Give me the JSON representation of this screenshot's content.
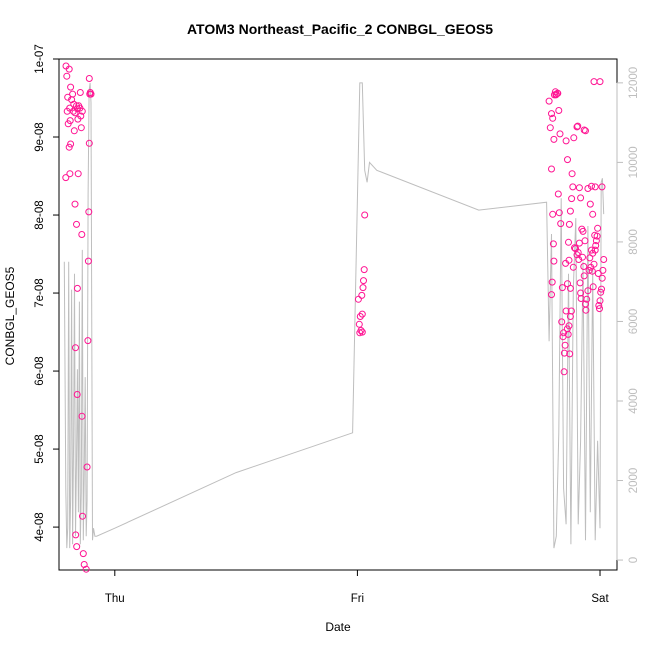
{
  "chart_data": {
    "type": "scatter",
    "title": "ATOM3 Northeast_Pacific_2 CONBGL_GEOS5",
    "xlabel": "Date",
    "ylabel": "CONBGL_GEOS5",
    "x_ticks": [
      {
        "value": 1.0,
        "label": "Thu"
      },
      {
        "value": 2.0,
        "label": "Fri"
      },
      {
        "value": 3.0,
        "label": "Sat"
      }
    ],
    "xlim": [
      0.77,
      3.07
    ],
    "ylim": [
      3.45e-08,
      1e-07
    ],
    "y_ticks": [
      {
        "value": 4e-08,
        "label": "4e-08"
      },
      {
        "value": 5e-08,
        "label": "5e-08"
      },
      {
        "value": 6e-08,
        "label": "6e-08"
      },
      {
        "value": 7e-08,
        "label": "7e-08"
      },
      {
        "value": 8e-08,
        "label": "8e-08"
      },
      {
        "value": 9e-08,
        "label": "9e-08"
      },
      {
        "value": 1e-07,
        "label": "1e-07"
      }
    ],
    "y2lim": [
      -250,
      12600
    ],
    "y2_ticks": [
      {
        "value": 0,
        "label": "0"
      },
      {
        "value": 2000,
        "label": "2000"
      },
      {
        "value": 4000,
        "label": "4000"
      },
      {
        "value": 6000,
        "label": "6000"
      },
      {
        "value": 8000,
        "label": "8000"
      },
      {
        "value": 10000,
        "label": "10000"
      },
      {
        "value": 12000,
        "label": "12000"
      }
    ],
    "grid": false,
    "colors": {
      "points": "#ff1493",
      "altitude_line": "#bebebe",
      "axis": "#000000",
      "right_axis": "#bebebe"
    },
    "points": [
      [
        0.799,
        9.91e-08
      ],
      [
        0.812,
        9.87e-08
      ],
      [
        0.802,
        9.78e-08
      ],
      [
        0.818,
        9.64e-08
      ],
      [
        0.826,
        9.55e-08
      ],
      [
        0.806,
        9.51e-08
      ],
      [
        0.822,
        9.48e-08
      ],
      [
        0.831,
        9.42e-08
      ],
      [
        0.814,
        9.37e-08
      ],
      [
        0.829,
        9.33e-08
      ],
      [
        0.804,
        9.33e-08
      ],
      [
        0.836,
        9.31e-08
      ],
      [
        0.816,
        9.21e-08
      ],
      [
        0.808,
        9.17e-08
      ],
      [
        0.833,
        9.08e-08
      ],
      [
        0.818,
        8.91e-08
      ],
      [
        0.812,
        8.87e-08
      ],
      [
        0.798,
        8.48e-08
      ],
      [
        0.815,
        8.53e-08
      ],
      [
        0.842,
        9.4e-08
      ],
      [
        0.846,
        9.36e-08
      ],
      [
        0.851,
        9.4e-08
      ],
      [
        0.848,
        9.23e-08
      ],
      [
        0.856,
        9.37e-08
      ],
      [
        0.86,
        9.27e-08
      ],
      [
        0.858,
        9.57e-08
      ],
      [
        0.862,
        9.12e-08
      ],
      [
        0.866,
        9.33e-08
      ],
      [
        0.836,
        8.14e-08
      ],
      [
        0.849,
        8.53e-08
      ],
      [
        0.842,
        7.88e-08
      ],
      [
        0.864,
        7.75e-08
      ],
      [
        0.846,
        7.06e-08
      ],
      [
        0.838,
        6.3e-08
      ],
      [
        0.845,
        5.7e-08
      ],
      [
        0.865,
        5.42e-08
      ],
      [
        0.839,
        3.9e-08
      ],
      [
        0.843,
        3.75e-08
      ],
      [
        0.867,
        4.14e-08
      ],
      [
        0.87,
        3.66e-08
      ],
      [
        0.874,
        3.52e-08
      ],
      [
        0.882,
        3.46e-08
      ],
      [
        0.895,
        9.75e-08
      ],
      [
        0.897,
        9.55e-08
      ],
      [
        0.899,
        9.57e-08
      ],
      [
        0.902,
        9.55e-08
      ],
      [
        0.895,
        8.92e-08
      ],
      [
        0.893,
        8.04e-08
      ],
      [
        0.891,
        7.41e-08
      ],
      [
        0.889,
        6.39e-08
      ],
      [
        0.886,
        4.77e-08
      ],
      [
        2.01,
        6.49e-08
      ],
      [
        2.02,
        6.5e-08
      ],
      [
        2.015,
        6.52e-08
      ],
      [
        2.008,
        6.6e-08
      ],
      [
        2.012,
        6.7e-08
      ],
      [
        2.02,
        6.73e-08
      ],
      [
        2.004,
        6.92e-08
      ],
      [
        2.018,
        6.97e-08
      ],
      [
        2.023,
        7.07e-08
      ],
      [
        2.025,
        7.16e-08
      ],
      [
        2.028,
        7.3e-08
      ],
      [
        2.03,
        8e-08
      ],
      [
        2.79,
        9.46e-08
      ],
      [
        2.8,
        9.3e-08
      ],
      [
        2.795,
        9.12e-08
      ],
      [
        2.805,
        9.24e-08
      ],
      [
        2.81,
        8.97e-08
      ],
      [
        2.8,
        8.59e-08
      ],
      [
        2.812,
        9.54e-08
      ],
      [
        2.816,
        9.58e-08
      ],
      [
        2.82,
        9.55e-08
      ],
      [
        2.825,
        9.56e-08
      ],
      [
        2.818,
        9.54e-08
      ],
      [
        2.826,
        9.56e-08
      ],
      [
        2.83,
        9.34e-08
      ],
      [
        2.835,
        9.04e-08
      ],
      [
        2.828,
        8.27e-08
      ],
      [
        2.832,
        8.03e-08
      ],
      [
        2.805,
        8.01e-08
      ],
      [
        2.808,
        7.63e-08
      ],
      [
        2.81,
        7.41e-08
      ],
      [
        2.803,
        7.14e-08
      ],
      [
        2.8,
        6.98e-08
      ],
      [
        2.838,
        7.89e-08
      ],
      [
        2.845,
        7.07e-08
      ],
      [
        2.842,
        6.63e-08
      ],
      [
        2.848,
        6.44e-08
      ],
      [
        2.85,
        6.49e-08
      ],
      [
        2.853,
        6.23e-08
      ],
      [
        2.856,
        6.33e-08
      ],
      [
        2.86,
        6.77e-08
      ],
      [
        2.852,
        5.99e-08
      ],
      [
        2.865,
        6.54e-08
      ],
      [
        2.869,
        6.47e-08
      ],
      [
        2.872,
        6.58e-08
      ],
      [
        2.875,
        6.22e-08
      ],
      [
        2.878,
        6.7e-08
      ],
      [
        2.882,
        6.77e-08
      ],
      [
        2.858,
        7.38e-08
      ],
      [
        2.866,
        7.12e-08
      ],
      [
        2.87,
        7.65e-08
      ],
      [
        2.874,
        7.88e-08
      ],
      [
        2.878,
        8.05e-08
      ],
      [
        2.883,
        8.21e-08
      ],
      [
        2.885,
        8.53e-08
      ],
      [
        2.888,
        8.36e-08
      ],
      [
        2.892,
        8.99e-08
      ],
      [
        2.86,
        8.95e-08
      ],
      [
        2.866,
        8.71e-08
      ],
      [
        2.872,
        7.42e-08
      ],
      [
        2.878,
        7.06e-08
      ],
      [
        2.89,
        7.33e-08
      ],
      [
        2.895,
        7.58e-08
      ],
      [
        2.899,
        7.57e-08
      ],
      [
        2.905,
        7.49e-08
      ],
      [
        2.91,
        7.52e-08
      ],
      [
        2.912,
        7.43e-08
      ],
      [
        2.915,
        7.64e-08
      ],
      [
        2.918,
        7.13e-08
      ],
      [
        2.92,
        7e-08
      ],
      [
        2.922,
        6.93e-08
      ],
      [
        2.925,
        7.82e-08
      ],
      [
        2.928,
        7.46e-08
      ],
      [
        2.93,
        7.79e-08
      ],
      [
        2.933,
        7.34e-08
      ],
      [
        2.935,
        7.22e-08
      ],
      [
        2.938,
        7.67e-08
      ],
      [
        2.94,
        6.86e-08
      ],
      [
        2.942,
        6.78e-08
      ],
      [
        2.945,
        6.92e-08
      ],
      [
        2.95,
        7.03e-08
      ],
      [
        2.955,
        7.29e-08
      ],
      [
        2.958,
        7.45e-08
      ],
      [
        2.962,
        7.33e-08
      ],
      [
        2.965,
        7.55e-08
      ],
      [
        2.968,
        7.28e-08
      ],
      [
        2.97,
        7.51e-08
      ],
      [
        2.972,
        7.08e-08
      ],
      [
        2.975,
        7.37e-08
      ],
      [
        2.978,
        7.74e-08
      ],
      [
        2.98,
        7.55e-08
      ],
      [
        2.982,
        7.61e-08
      ],
      [
        2.985,
        7.67e-08
      ],
      [
        2.988,
        7.73e-08
      ],
      [
        2.99,
        7.83e-08
      ],
      [
        2.993,
        7.25e-08
      ],
      [
        2.995,
        6.84e-08
      ],
      [
        2.998,
        6.8e-08
      ],
      [
        3.0,
        6.9e-08
      ],
      [
        3.003,
        7.01e-08
      ],
      [
        3.006,
        7.05e-08
      ],
      [
        3.009,
        7.19e-08
      ],
      [
        3.012,
        7.29e-08
      ],
      [
        3.015,
        7.43e-08
      ],
      [
        2.905,
        9.13e-08
      ],
      [
        2.908,
        9.14e-08
      ],
      [
        2.915,
        8.35e-08
      ],
      [
        2.92,
        8.22e-08
      ],
      [
        2.935,
        9.09e-08
      ],
      [
        2.94,
        9.08e-08
      ],
      [
        2.95,
        8.34e-08
      ],
      [
        2.96,
        8.14e-08
      ],
      [
        2.965,
        8.37e-08
      ],
      [
        2.97,
        8.01e-08
      ],
      [
        2.975,
        9.71e-08
      ],
      [
        2.98,
        8.36e-08
      ],
      [
        3.0,
        9.71e-08
      ],
      [
        3.008,
        8.36e-08
      ]
    ],
    "altitude_series": {
      "name": "",
      "x": [
        0.792,
        0.798,
        0.802,
        0.806,
        0.81,
        0.814,
        0.818,
        0.822,
        0.826,
        0.83,
        0.834,
        0.838,
        0.842,
        0.846,
        0.85,
        0.854,
        0.858,
        0.862,
        0.866,
        0.87,
        0.874,
        0.878,
        0.882,
        0.886,
        0.89,
        0.894,
        0.898,
        0.902,
        0.908,
        0.912,
        0.918,
        0.925,
        1.0,
        1.5,
        1.98,
        2.01,
        2.02,
        2.03,
        2.04,
        2.05,
        2.08,
        2.5,
        2.78,
        2.79,
        2.8,
        2.81,
        2.82,
        2.83,
        2.84,
        2.85,
        2.86,
        2.87,
        2.88,
        2.89,
        2.9,
        2.91,
        2.92,
        2.93,
        2.94,
        2.95,
        2.96,
        2.97,
        2.98,
        2.99,
        3.0,
        3.005,
        3.01,
        3.015
      ],
      "y": [
        7500,
        1800,
        300,
        800,
        7500,
        300,
        1500,
        6800,
        400,
        3000,
        7200,
        600,
        2500,
        4800,
        1200,
        6500,
        400,
        1700,
        7800,
        500,
        2100,
        4600,
        600,
        1500,
        9200,
        11800,
        12000,
        11500,
        500,
        800,
        600,
        600,
        800,
        2200,
        3200,
        12000,
        12000,
        9800,
        9500,
        10000,
        9800,
        8800,
        9000,
        5500,
        8200,
        300,
        600,
        3200,
        9100,
        1800,
        900,
        7200,
        400,
        6800,
        8600,
        900,
        3000,
        7500,
        500,
        8400,
        1200,
        7300,
        500,
        3000,
        800,
        9500,
        9600,
        8700
      ]
    }
  }
}
